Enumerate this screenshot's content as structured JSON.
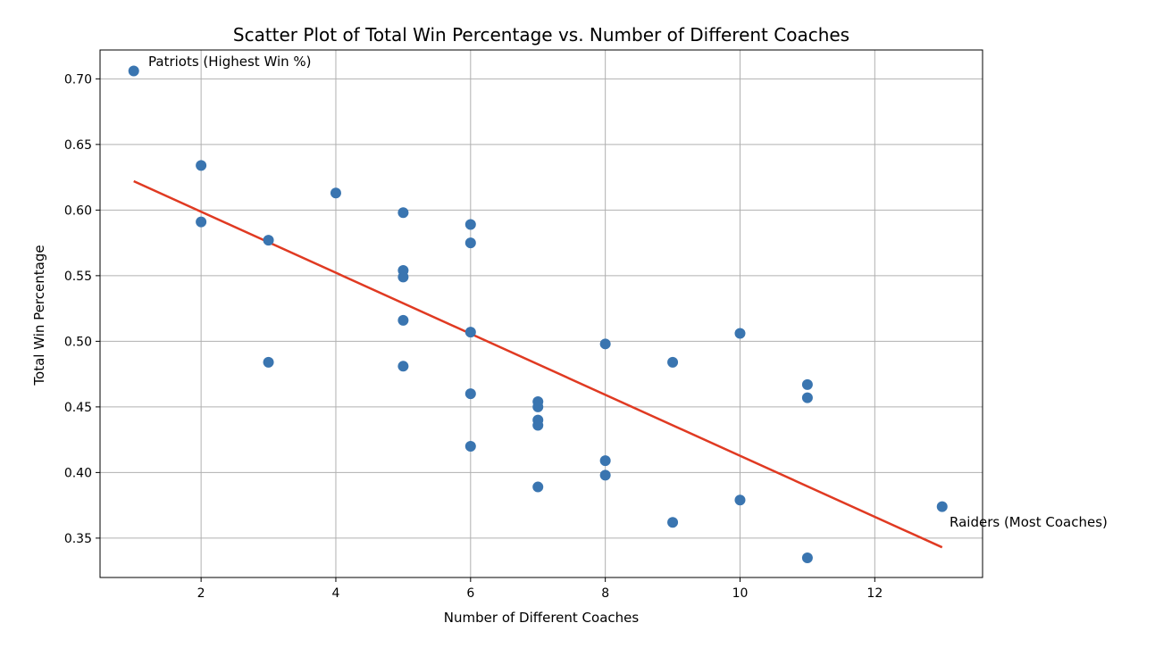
{
  "chart_data": {
    "type": "scatter",
    "title": "Scatter Plot of Total Win Percentage vs. Number of Different Coaches",
    "xlabel": "Number of Different Coaches",
    "ylabel": "Total Win Percentage",
    "xlim": [
      0.5,
      13.6
    ],
    "ylim": [
      0.32,
      0.722
    ],
    "xticks": [
      2,
      4,
      6,
      8,
      10,
      12
    ],
    "yticks": [
      0.35,
      0.4,
      0.45,
      0.5,
      0.55,
      0.6,
      0.65,
      0.7
    ],
    "grid": true,
    "point_color": "#3a75b0",
    "trend_color": "#e03a22",
    "points": [
      {
        "x": 1,
        "y": 0.706
      },
      {
        "x": 2,
        "y": 0.634
      },
      {
        "x": 2,
        "y": 0.591
      },
      {
        "x": 3,
        "y": 0.577
      },
      {
        "x": 3,
        "y": 0.484
      },
      {
        "x": 4,
        "y": 0.613
      },
      {
        "x": 5,
        "y": 0.598
      },
      {
        "x": 5,
        "y": 0.554
      },
      {
        "x": 5,
        "y": 0.549
      },
      {
        "x": 5,
        "y": 0.516
      },
      {
        "x": 5,
        "y": 0.481
      },
      {
        "x": 6,
        "y": 0.589
      },
      {
        "x": 6,
        "y": 0.575
      },
      {
        "x": 6,
        "y": 0.507
      },
      {
        "x": 6,
        "y": 0.46
      },
      {
        "x": 6,
        "y": 0.42
      },
      {
        "x": 7,
        "y": 0.454
      },
      {
        "x": 7,
        "y": 0.45
      },
      {
        "x": 7,
        "y": 0.44
      },
      {
        "x": 7,
        "y": 0.436
      },
      {
        "x": 7,
        "y": 0.389
      },
      {
        "x": 8,
        "y": 0.498
      },
      {
        "x": 8,
        "y": 0.409
      },
      {
        "x": 8,
        "y": 0.398
      },
      {
        "x": 9,
        "y": 0.484
      },
      {
        "x": 9,
        "y": 0.362
      },
      {
        "x": 10,
        "y": 0.506
      },
      {
        "x": 10,
        "y": 0.379
      },
      {
        "x": 11,
        "y": 0.467
      },
      {
        "x": 11,
        "y": 0.457
      },
      {
        "x": 11,
        "y": 0.335
      },
      {
        "x": 13,
        "y": 0.374
      }
    ],
    "trendline": {
      "x": [
        1,
        13
      ],
      "y": [
        0.622,
        0.343
      ]
    },
    "annotations": [
      {
        "text": "Patriots (Highest Win %)",
        "x": 1,
        "y": 0.706
      },
      {
        "text": "Raiders (Most Coaches)",
        "x": 13,
        "y": 0.374
      }
    ]
  }
}
